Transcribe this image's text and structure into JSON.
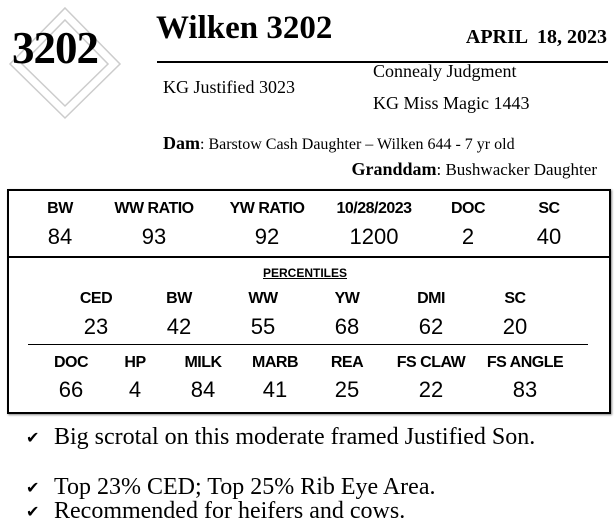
{
  "header": {
    "tag_number": "3202",
    "title": "Wilken 3202",
    "date": "APRIL  18, 2023"
  },
  "pedigree": {
    "sire": "KG Justified 3023",
    "sire_sire": "Connealy Judgment",
    "sire_dam": "KG Miss Magic 1443",
    "dam_label": "Dam",
    "dam": ": Barstow Cash Daughter – Wilken 644 - 7 yr old",
    "granddam_label": "Granddam",
    "granddam": ": Bushwacker Daughter"
  },
  "stats": [
    {
      "label": "BW",
      "value": "84"
    },
    {
      "label": "WW RATIO",
      "value": "93"
    },
    {
      "label": "YW RATIO",
      "value": "92"
    },
    {
      "label": "10/28/2023",
      "value": "1200"
    },
    {
      "label": "DOC",
      "value": "2"
    },
    {
      "label": "SC",
      "value": "40"
    }
  ],
  "percentiles": {
    "title": "PERCENTILES",
    "row1": [
      {
        "label": "CED",
        "value": "23"
      },
      {
        "label": "BW",
        "value": "42"
      },
      {
        "label": "WW",
        "value": "55"
      },
      {
        "label": "YW",
        "value": "68"
      },
      {
        "label": "DMI",
        "value": "62"
      },
      {
        "label": "SC",
        "value": "20"
      }
    ],
    "row2": [
      {
        "label": "DOC",
        "value": "66"
      },
      {
        "label": "HP",
        "value": "4"
      },
      {
        "label": "MILK",
        "value": "84"
      },
      {
        "label": "MARB",
        "value": "41"
      },
      {
        "label": "REA",
        "value": "25"
      },
      {
        "label": "FS CLAW",
        "value": "22"
      },
      {
        "label": "FS ANGLE",
        "value": "83"
      }
    ]
  },
  "notes": [
    "Big scrotal on this moderate framed Justified Son.",
    "Top 23% CED; Top 25% Rib Eye Area.",
    "Recommended for heifers and cows."
  ],
  "icons": {
    "bullet": "checkmark-icon",
    "watermark": "diamond-logo"
  }
}
